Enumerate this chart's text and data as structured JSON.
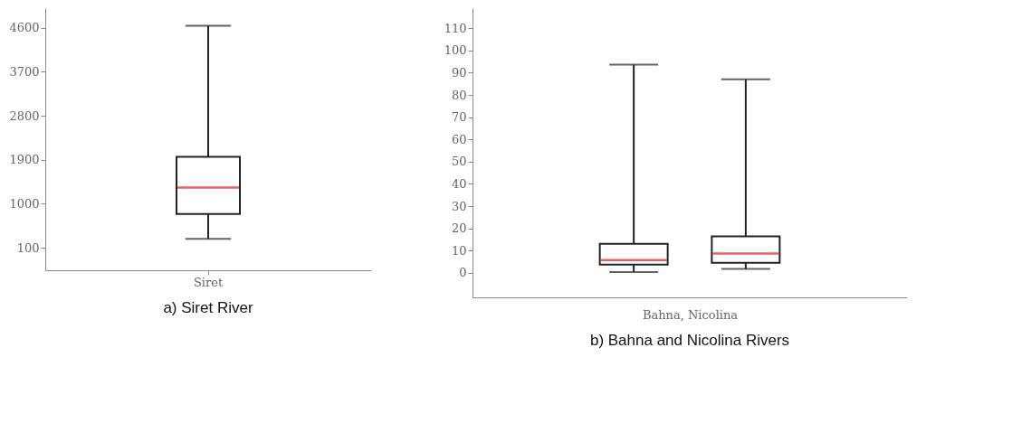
{
  "chart_data": [
    {
      "type": "box",
      "title": "a) Siret River",
      "categories": [
        "Siret"
      ],
      "ylim": [
        -360,
        5000
      ],
      "yticks": [
        100,
        1000,
        1900,
        2800,
        3700,
        4600
      ],
      "boxes": [
        {
          "low": 280,
          "q1": 790,
          "median": 1330,
          "q3": 1960,
          "high": 4640
        }
      ]
    },
    {
      "type": "box",
      "title": "b) Bahna and Nicolina Rivers",
      "xlabel": "Bahna, Nicolina",
      "categories": [
        null,
        null
      ],
      "ylim": [
        -11,
        119
      ],
      "yticks": [
        0,
        10,
        20,
        30,
        40,
        50,
        60,
        70,
        80,
        90,
        100,
        110
      ],
      "boxes": [
        {
          "low": 0.4,
          "q1": 3.7,
          "median": 5.8,
          "q3": 13.1,
          "high": 93.6
        },
        {
          "low": 1.8,
          "q1": 4.5,
          "median": 8.7,
          "q3": 16.4,
          "high": 87.0
        }
      ]
    }
  ]
}
